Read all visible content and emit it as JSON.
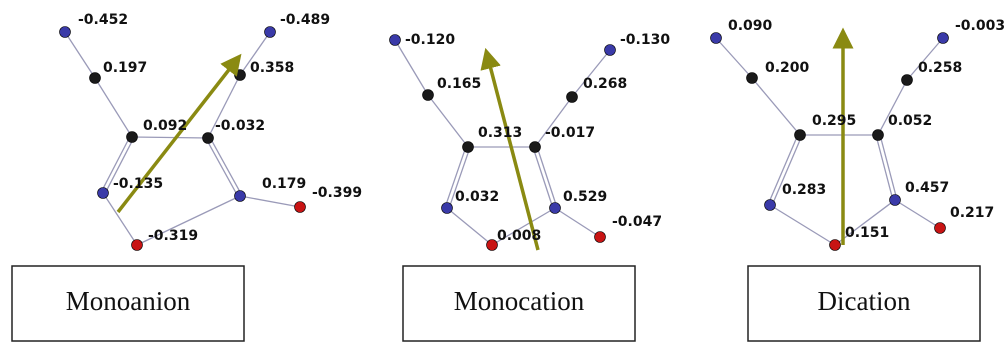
{
  "panels": [
    {
      "label": "Monoanion",
      "charges": [
        "-0.452",
        "0.197",
        "0.092",
        "-0.032",
        "0.358",
        "-0.489",
        "-0.135",
        "0.179",
        "-0.399",
        "-0.319"
      ]
    },
    {
      "label": "Monocation",
      "charges": [
        "-0.120",
        "0.165",
        "0.313",
        "-0.017",
        "0.268",
        "-0.130",
        "0.032",
        "0.529",
        "-0.047",
        "0.008"
      ]
    },
    {
      "label": "Dication",
      "charges": [
        "0.090",
        "0.200",
        "0.295",
        "0.052",
        "0.258",
        "-0.003",
        "0.283",
        "0.457",
        "0.217",
        "0.151"
      ]
    }
  ]
}
